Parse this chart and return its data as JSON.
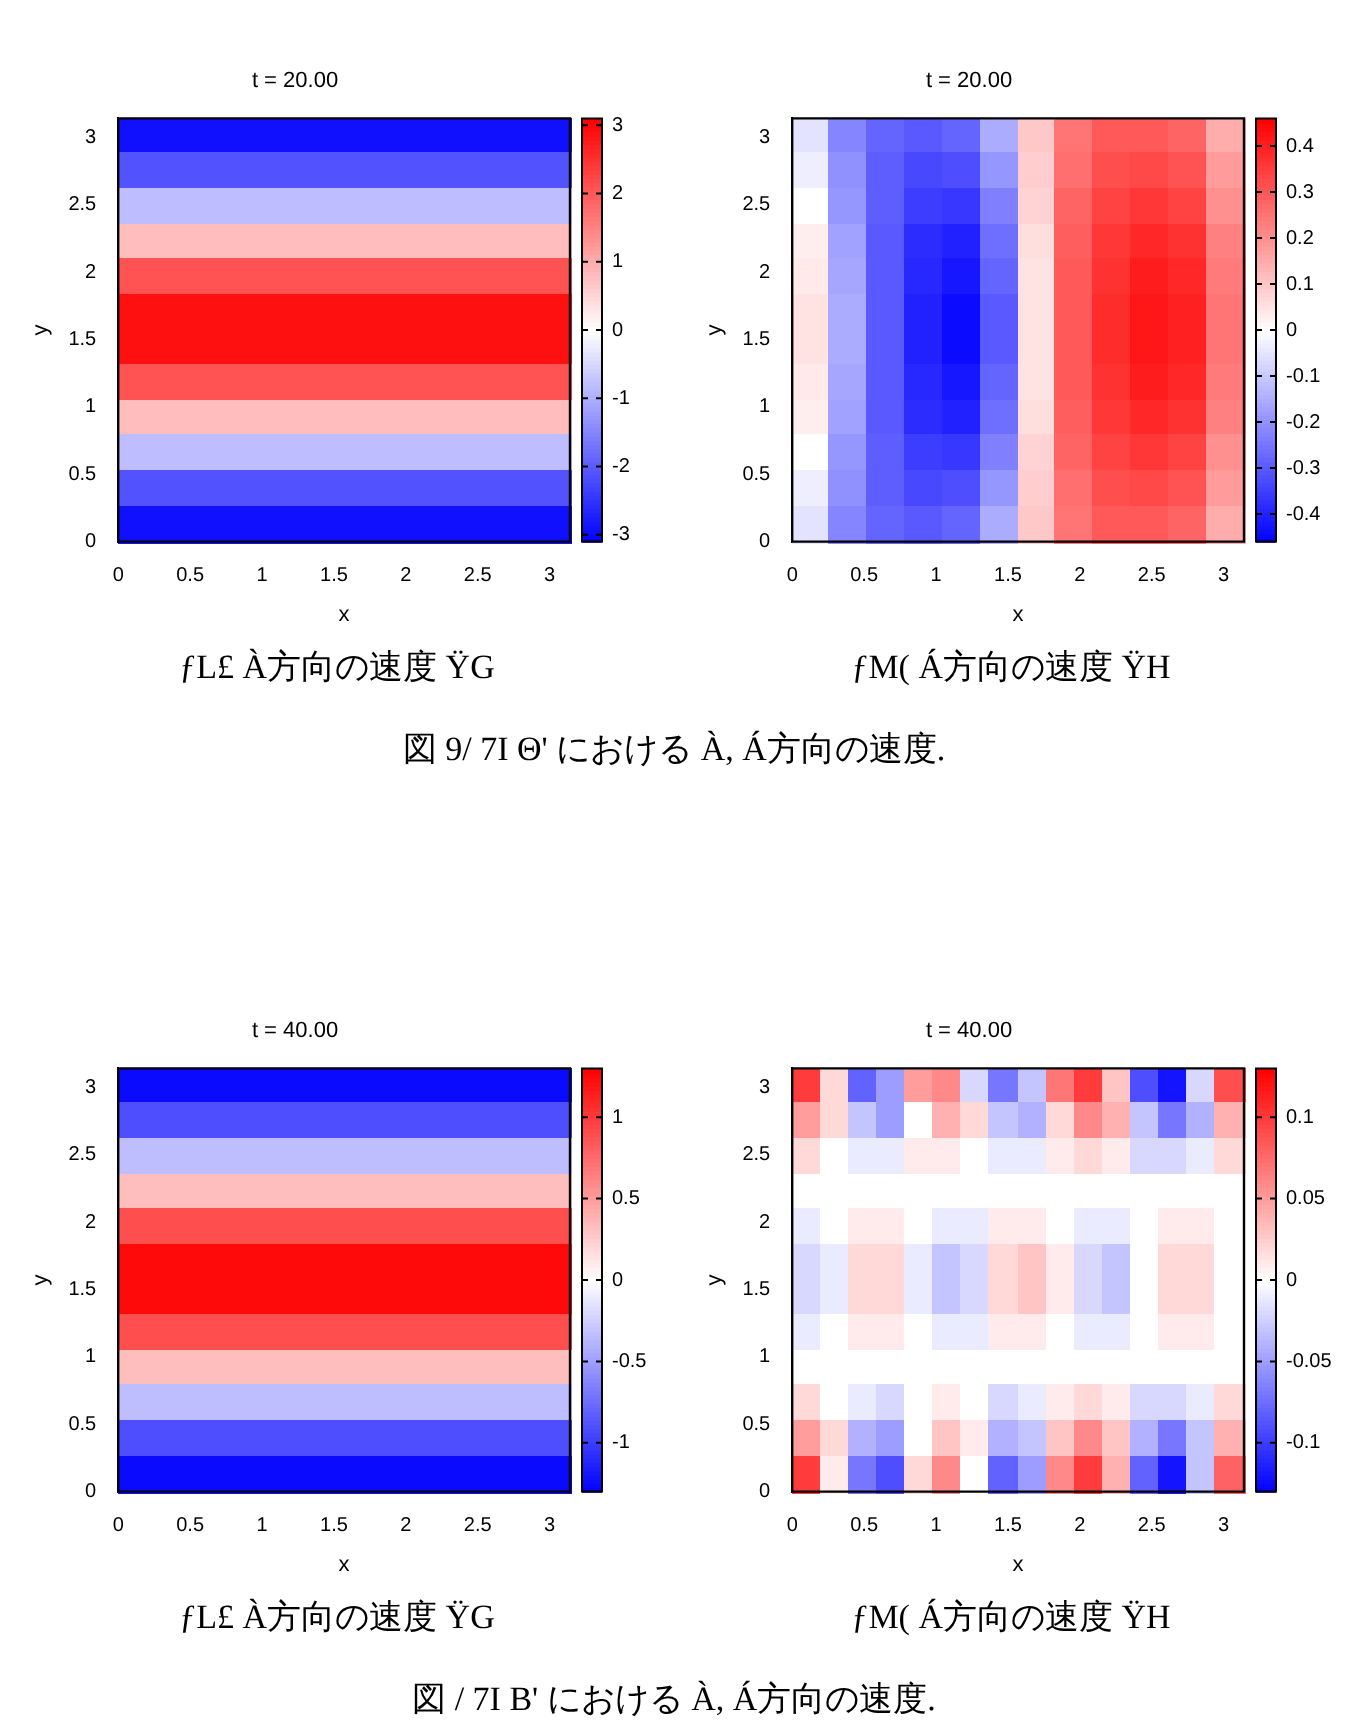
{
  "chart_data": [
    {
      "type": "heatmap",
      "title": "t = 20.00",
      "xlabel": "x",
      "ylabel": "y",
      "xlim": [
        0,
        3.1416
      ],
      "ylim": [
        0,
        3.1416
      ],
      "xticks": [
        0,
        0.5,
        1,
        1.5,
        2,
        2.5,
        3
      ],
      "yticks": [
        0,
        0.5,
        1,
        1.5,
        2,
        2.5,
        3
      ],
      "clim": [
        -3.1,
        3.1
      ],
      "cticks": [
        -3,
        -2,
        -1,
        0,
        1,
        2,
        3
      ],
      "x": [
        0.393,
        1.178,
        1.963,
        2.749
      ],
      "y": [
        3.011,
        2.749,
        2.487,
        2.225,
        1.963,
        1.702,
        1.44,
        1.178,
        0.916,
        0.654,
        0.393,
        0.131
      ],
      "cells": [
        [
          -2.9,
          -2.9,
          -2.9,
          -2.9
        ],
        [
          -2.1,
          -2.1,
          -2.1,
          -2.1
        ],
        [
          -0.8,
          -0.8,
          -0.8,
          -0.8
        ],
        [
          0.8,
          0.8,
          0.8,
          0.8
        ],
        [
          2.1,
          2.1,
          2.1,
          2.1
        ],
        [
          2.9,
          2.9,
          2.9,
          2.9
        ],
        [
          2.9,
          2.9,
          2.9,
          2.9
        ],
        [
          2.1,
          2.1,
          2.1,
          2.1
        ],
        [
          0.8,
          0.8,
          0.8,
          0.8
        ],
        [
          -0.8,
          -0.8,
          -0.8,
          -0.8
        ],
        [
          -2.1,
          -2.1,
          -2.1,
          -2.1
        ],
        [
          -2.9,
          -2.9,
          -2.9,
          -2.9
        ]
      ],
      "annotations": [
        "ƒL£ À方向の速度 ŸG",
        "図 9/ 7I  Θ' における À, Á方向の速度."
      ]
    },
    {
      "type": "heatmap",
      "title": "t = 20.00",
      "xlabel": "x",
      "ylabel": "y",
      "xlim": [
        0,
        3.1416
      ],
      "ylim": [
        0,
        3.1416
      ],
      "xticks": [
        0,
        0.5,
        1,
        1.5,
        2,
        2.5,
        3
      ],
      "yticks": [
        0,
        0.5,
        1,
        1.5,
        2,
        2.5,
        3
      ],
      "clim": [
        -0.46,
        0.46
      ],
      "cticks": [
        -0.4,
        -0.3,
        -0.2,
        -0.1,
        0,
        0.1,
        0.2,
        0.3,
        0.4
      ],
      "x": [
        0.131,
        0.393,
        0.654,
        0.916,
        1.178,
        1.44,
        1.702,
        1.963,
        2.225,
        2.487,
        2.749,
        3.011
      ],
      "y": [
        3.011,
        2.749,
        2.487,
        2.225,
        1.963,
        1.702,
        1.44,
        1.178,
        0.916,
        0.654,
        0.393,
        0.131
      ],
      "cells": [
        [
          -0.05,
          -0.22,
          -0.28,
          -0.3,
          -0.28,
          -0.15,
          0.1,
          0.25,
          0.3,
          0.3,
          0.28,
          0.15
        ],
        [
          -0.03,
          -0.2,
          -0.29,
          -0.33,
          -0.32,
          -0.19,
          0.09,
          0.26,
          0.32,
          0.33,
          0.31,
          0.18
        ],
        [
          0,
          -0.19,
          -0.29,
          -0.35,
          -0.36,
          -0.23,
          0.08,
          0.28,
          0.34,
          0.36,
          0.34,
          0.2
        ],
        [
          0.03,
          -0.17,
          -0.3,
          -0.38,
          -0.4,
          -0.26,
          0.06,
          0.29,
          0.36,
          0.39,
          0.37,
          0.23
        ],
        [
          0.04,
          -0.16,
          -0.3,
          -0.39,
          -0.42,
          -0.28,
          0.05,
          0.3,
          0.37,
          0.41,
          0.39,
          0.24
        ],
        [
          0.05,
          -0.15,
          -0.3,
          -0.4,
          -0.44,
          -0.3,
          0.05,
          0.3,
          0.38,
          0.42,
          0.4,
          0.25
        ],
        [
          0.05,
          -0.15,
          -0.3,
          -0.4,
          -0.44,
          -0.3,
          0.05,
          0.3,
          0.38,
          0.42,
          0.4,
          0.25
        ],
        [
          0.04,
          -0.16,
          -0.3,
          -0.39,
          -0.42,
          -0.28,
          0.05,
          0.3,
          0.37,
          0.41,
          0.39,
          0.24
        ],
        [
          0.03,
          -0.17,
          -0.3,
          -0.38,
          -0.4,
          -0.26,
          0.06,
          0.29,
          0.36,
          0.39,
          0.37,
          0.23
        ],
        [
          0,
          -0.19,
          -0.29,
          -0.35,
          -0.36,
          -0.23,
          0.08,
          0.28,
          0.34,
          0.36,
          0.34,
          0.2
        ],
        [
          -0.03,
          -0.2,
          -0.29,
          -0.33,
          -0.32,
          -0.19,
          0.09,
          0.26,
          0.32,
          0.33,
          0.31,
          0.18
        ],
        [
          -0.05,
          -0.22,
          -0.28,
          -0.3,
          -0.28,
          -0.15,
          0.1,
          0.25,
          0.3,
          0.3,
          0.28,
          0.15
        ]
      ],
      "annotations": [
        "ƒM( Á方向の速度 ŸH"
      ]
    },
    {
      "type": "heatmap",
      "title": "t = 40.00",
      "xlabel": "x",
      "ylabel": "y",
      "xlim": [
        0,
        3.1416
      ],
      "ylim": [
        0,
        3.1416
      ],
      "xticks": [
        0,
        0.5,
        1,
        1.5,
        2,
        2.5,
        3
      ],
      "yticks": [
        0,
        0.5,
        1,
        1.5,
        2,
        2.5,
        3
      ],
      "clim": [
        -1.3,
        1.3
      ],
      "cticks": [
        -1,
        -0.5,
        0,
        0.5,
        1
      ],
      "x": [
        0.393,
        1.178,
        1.963,
        2.749
      ],
      "y": [
        3.011,
        2.749,
        2.487,
        2.225,
        1.963,
        1.702,
        1.44,
        1.178,
        0.916,
        0.654,
        0.393,
        0.131
      ],
      "cells": [
        [
          -1.25,
          -1.25,
          -1.25,
          -1.25
        ],
        [
          -0.9,
          -0.9,
          -0.9,
          -0.9
        ],
        [
          -0.33,
          -0.33,
          -0.33,
          -0.33
        ],
        [
          0.33,
          0.33,
          0.33,
          0.33
        ],
        [
          0.9,
          0.9,
          0.9,
          0.9
        ],
        [
          1.25,
          1.25,
          1.25,
          1.25
        ],
        [
          1.25,
          1.25,
          1.25,
          1.25
        ],
        [
          0.9,
          0.9,
          0.9,
          0.9
        ],
        [
          0.33,
          0.33,
          0.33,
          0.33
        ],
        [
          -0.33,
          -0.33,
          -0.33,
          -0.33
        ],
        [
          -0.9,
          -0.9,
          -0.9,
          -0.9
        ],
        [
          -1.25,
          -1.25,
          -1.25,
          -1.25
        ]
      ],
      "annotations": [
        "ƒL£ À方向の速度 ŸG",
        "図  / 7I  B' における À, Á方向の速度."
      ]
    },
    {
      "type": "heatmap",
      "title": "t = 40.00",
      "xlabel": "x",
      "ylabel": "y",
      "xlim": [
        0,
        3.1416
      ],
      "ylim": [
        0,
        3.1416
      ],
      "xticks": [
        0,
        0.5,
        1,
        1.5,
        2,
        2.5,
        3
      ],
      "yticks": [
        0,
        0.5,
        1,
        1.5,
        2,
        2.5,
        3
      ],
      "clim": [
        -0.13,
        0.13
      ],
      "cticks": [
        -0.1,
        -0.05,
        0,
        0.05,
        0.1
      ],
      "x": [
        0.098,
        0.295,
        0.491,
        0.687,
        0.884,
        1.08,
        1.276,
        1.473,
        1.669,
        1.865,
        2.061,
        2.258,
        2.454,
        2.65,
        2.847,
        3.043
      ],
      "y": [
        3.011,
        2.749,
        2.487,
        2.225,
        1.963,
        1.702,
        1.44,
        1.178,
        0.916,
        0.654,
        0.393,
        0.131
      ],
      "cells": [
        [
          0.1,
          0.02,
          -0.08,
          -0.05,
          0.05,
          0.06,
          -0.02,
          -0.07,
          -0.03,
          0.07,
          0.1,
          0.03,
          -0.09,
          -0.12,
          -0.02,
          0.09
        ],
        [
          0.05,
          0.02,
          -0.03,
          -0.05,
          0,
          0.04,
          0.02,
          -0.03,
          -0.04,
          0.02,
          0.06,
          0.04,
          -0.03,
          -0.07,
          -0.04,
          0.04
        ],
        [
          0.02,
          0,
          -0.01,
          -0.01,
          0.01,
          0.01,
          0,
          -0.01,
          -0.01,
          0.01,
          0.02,
          0.01,
          -0.02,
          -0.02,
          -0.01,
          0.02
        ],
        [
          0,
          0,
          0,
          0,
          0,
          0,
          0,
          0,
          0,
          0,
          0,
          0,
          0,
          0,
          0,
          0
        ],
        [
          -0.01,
          0,
          0.01,
          0.01,
          0,
          -0.01,
          -0.01,
          0.01,
          0.01,
          0,
          -0.01,
          -0.01,
          0,
          0.01,
          0.01,
          0
        ],
        [
          -0.02,
          -0.01,
          0.02,
          0.02,
          -0.01,
          -0.03,
          -0.02,
          0.02,
          0.03,
          0.01,
          -0.02,
          -0.03,
          0,
          0.02,
          0.02,
          0
        ],
        [
          -0.02,
          -0.01,
          0.02,
          0.02,
          -0.01,
          -0.03,
          -0.02,
          0.02,
          0.03,
          0.01,
          -0.02,
          -0.03,
          0,
          0.02,
          0.02,
          0
        ],
        [
          -0.01,
          0,
          0.01,
          0.01,
          0,
          -0.01,
          -0.01,
          0.01,
          0.01,
          0,
          -0.01,
          -0.01,
          0,
          0.01,
          0.01,
          0
        ],
        [
          0,
          0,
          0,
          0,
          0,
          0,
          0,
          0,
          0,
          0,
          0,
          0,
          0,
          0,
          0,
          0
        ],
        [
          0.02,
          0,
          -0.01,
          -0.02,
          0,
          0.01,
          0,
          -0.02,
          -0.01,
          0.01,
          0.02,
          0.01,
          -0.02,
          -0.02,
          -0.01,
          0.02
        ],
        [
          0.05,
          0.02,
          -0.04,
          -0.05,
          0,
          0.03,
          0.01,
          -0.04,
          -0.03,
          0.03,
          0.06,
          0.03,
          -0.04,
          -0.07,
          -0.03,
          0.04
        ],
        [
          0.1,
          0.01,
          -0.07,
          -0.09,
          0.02,
          0.06,
          0,
          -0.08,
          -0.05,
          0.06,
          0.1,
          0.04,
          -0.08,
          -0.12,
          -0.03,
          0.08
        ]
      ],
      "annotations": [
        "ƒM( Á方向の速度 ŸH"
      ]
    }
  ]
}
